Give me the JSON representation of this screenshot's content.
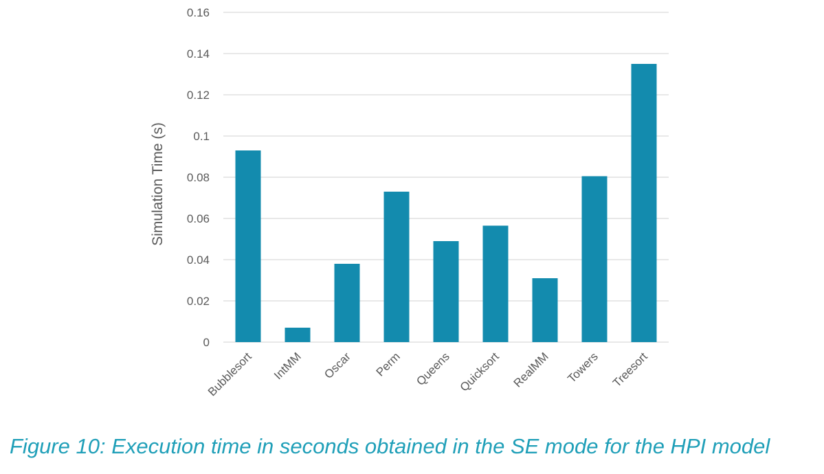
{
  "chart_data": {
    "type": "bar",
    "categories": [
      "Bubblesort",
      "IntMM",
      "Oscar",
      "Perm",
      "Queens",
      "Quicksort",
      "RealMM",
      "Towers",
      "Treesort"
    ],
    "values": [
      0.093,
      0.007,
      0.038,
      0.073,
      0.049,
      0.0565,
      0.031,
      0.0805,
      0.135
    ],
    "title": "",
    "xlabel": "",
    "ylabel": "Simulation Time (s)",
    "ylim": [
      0,
      0.16
    ],
    "yticks": [
      "0",
      "0.02",
      "0.04",
      "0.06",
      "0.08",
      "0.1",
      "0.12",
      "0.14",
      "0.16"
    ],
    "grid": true,
    "bar_color": "#138bae",
    "grid_color": "#d9d9d9"
  },
  "caption": "Figure 10: Execution time in seconds obtained in the SE mode for the HPI model"
}
